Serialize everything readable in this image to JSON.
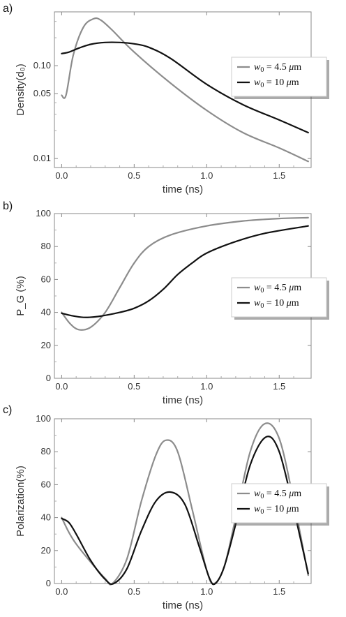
{
  "chart_data": [
    {
      "type": "line",
      "panel_label": "a)",
      "xlabel": "time (ns)",
      "ylabel": "Density(d₀)",
      "yscale": "log",
      "xlim": [
        -0.05,
        1.72
      ],
      "ylim": [
        0.008,
        0.38
      ],
      "xticks": [
        {
          "v": 0.0,
          "label": "0.0"
        },
        {
          "v": 0.5,
          "label": "0.5"
        },
        {
          "v": 1.0,
          "label": "1.0"
        },
        {
          "v": 1.5,
          "label": "1.5"
        }
      ],
      "yticks": [
        {
          "v": 0.01,
          "label": "0.01"
        },
        {
          "v": 0.05,
          "label": "0.05"
        },
        {
          "v": 0.1,
          "label": "0.10"
        }
      ],
      "legend": {
        "position": "right",
        "entries": [
          {
            "w": "w",
            "sub": "0",
            "rest": " = 4.5 ",
            "mu": "μ",
            "unit": "m"
          },
          {
            "w": "w",
            "sub": "0",
            "rest": " = 10 ",
            "mu": "μ",
            "unit": "m"
          }
        ]
      },
      "series": [
        {
          "color": "#8c8c8c",
          "x": [
            0.0,
            0.03,
            0.08,
            0.15,
            0.22,
            0.27,
            0.35,
            0.5,
            0.75,
            1.0,
            1.25,
            1.5,
            1.7
          ],
          "y": [
            0.048,
            0.048,
            0.13,
            0.26,
            0.32,
            0.31,
            0.24,
            0.14,
            0.065,
            0.033,
            0.019,
            0.013,
            0.0093
          ]
        },
        {
          "color": "#111111",
          "x": [
            0.0,
            0.05,
            0.12,
            0.2,
            0.3,
            0.4,
            0.5,
            0.6,
            0.75,
            1.0,
            1.25,
            1.5,
            1.7
          ],
          "y": [
            0.135,
            0.14,
            0.155,
            0.17,
            0.178,
            0.178,
            0.172,
            0.158,
            0.12,
            0.063,
            0.038,
            0.026,
            0.019
          ]
        }
      ]
    },
    {
      "type": "line",
      "panel_label": "b)",
      "xlabel": "time (ns)",
      "ylabel": "P_G (%)",
      "yscale": "linear",
      "xlim": [
        -0.05,
        1.72
      ],
      "ylim": [
        0,
        100
      ],
      "xticks": [
        {
          "v": 0.0,
          "label": "0.0"
        },
        {
          "v": 0.5,
          "label": "0.5"
        },
        {
          "v": 1.0,
          "label": "1.0"
        },
        {
          "v": 1.5,
          "label": "1.5"
        }
      ],
      "yticks": [
        {
          "v": 0,
          "label": "0"
        },
        {
          "v": 20,
          "label": "20"
        },
        {
          "v": 40,
          "label": "40"
        },
        {
          "v": 60,
          "label": "60"
        },
        {
          "v": 80,
          "label": "80"
        },
        {
          "v": 100,
          "label": "100"
        }
      ],
      "legend": {
        "position": "right",
        "entries": [
          {
            "w": "w",
            "sub": "0",
            "rest": " = 4.5 ",
            "mu": "μ",
            "unit": "m"
          },
          {
            "w": "w",
            "sub": "0",
            "rest": " = 10 ",
            "mu": "μ",
            "unit": "m"
          }
        ]
      },
      "series": [
        {
          "color": "#8c8c8c",
          "x": [
            0.0,
            0.06,
            0.12,
            0.2,
            0.3,
            0.4,
            0.5,
            0.6,
            0.75,
            1.0,
            1.25,
            1.5,
            1.7
          ],
          "y": [
            40,
            33,
            29.5,
            31,
            40,
            55,
            70,
            80,
            87,
            92.5,
            95.5,
            97,
            97.5
          ]
        },
        {
          "color": "#111111",
          "x": [
            0.0,
            0.07,
            0.15,
            0.25,
            0.4,
            0.5,
            0.6,
            0.7,
            0.8,
            0.9,
            1.0,
            1.2,
            1.4,
            1.7
          ],
          "y": [
            39.5,
            38,
            37,
            37.5,
            40,
            42.5,
            47,
            54,
            63,
            70,
            76,
            83,
            88,
            92.5
          ]
        }
      ]
    },
    {
      "type": "line",
      "panel_label": "c)",
      "xlabel": "time (ns)",
      "ylabel": "Polarization(%)",
      "yscale": "linear",
      "xlim": [
        -0.05,
        1.72
      ],
      "ylim": [
        0,
        100
      ],
      "xticks": [
        {
          "v": 0.0,
          "label": "0.0"
        },
        {
          "v": 0.5,
          "label": "0.5"
        },
        {
          "v": 1.0,
          "label": "1.0"
        },
        {
          "v": 1.5,
          "label": "1.5"
        }
      ],
      "yticks": [
        {
          "v": 0,
          "label": "0"
        },
        {
          "v": 20,
          "label": "20"
        },
        {
          "v": 40,
          "label": "40"
        },
        {
          "v": 60,
          "label": "60"
        },
        {
          "v": 80,
          "label": "80"
        },
        {
          "v": 100,
          "label": "100"
        }
      ],
      "legend": {
        "position": "right",
        "entries": [
          {
            "w": "w",
            "sub": "0",
            "rest": " = 4.5 ",
            "mu": "μ",
            "unit": "m"
          },
          {
            "w": "w",
            "sub": "0",
            "rest": " = 10 ",
            "mu": "μ",
            "unit": "m"
          }
        ]
      },
      "series": [
        {
          "color": "#8c8c8c",
          "x": [
            0.0,
            0.05,
            0.1,
            0.2,
            0.3,
            0.35,
            0.45,
            0.55,
            0.65,
            0.72,
            0.8,
            0.9,
            1.0,
            1.05,
            1.12,
            1.2,
            1.3,
            1.4,
            1.5,
            1.6,
            1.7
          ],
          "y": [
            40,
            31,
            24,
            13,
            3,
            0,
            15,
            50,
            78,
            87,
            80,
            45,
            8,
            0,
            10,
            40,
            80,
            97,
            88,
            50,
            5
          ]
        },
        {
          "color": "#111111",
          "x": [
            0.0,
            0.05,
            0.1,
            0.2,
            0.3,
            0.36,
            0.45,
            0.55,
            0.65,
            0.75,
            0.85,
            0.95,
            1.02,
            1.06,
            1.12,
            1.2,
            1.3,
            1.41,
            1.5,
            1.6,
            1.7
          ],
          "y": [
            39.5,
            37,
            30,
            14,
            2.5,
            0,
            9,
            32,
            50,
            55.5,
            48,
            22,
            3,
            0,
            10,
            36,
            72,
            89,
            80,
            45,
            6
          ]
        }
      ]
    }
  ]
}
